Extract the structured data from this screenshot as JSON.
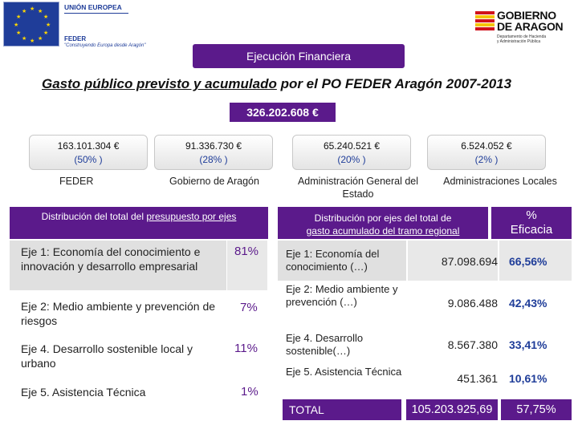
{
  "logos": {
    "eu": {
      "title": "UNIÓN EUROPEA",
      "feder": "FEDER",
      "slogan": "\"Construyendo Europa desde Aragón\"",
      "flag_color": "#1f3d99"
    },
    "aragon": {
      "name_line1": "GOBIERNO",
      "name_line2": "DE ARAGON",
      "dept_line1": "Departamento de Hacienda",
      "dept_line2": "y Administración Pública"
    }
  },
  "header": {
    "label": "Ejecución Financiera"
  },
  "title": {
    "underlined": "Gasto público previsto y acumulado",
    "rest": " por el PO FEDER Aragón 2007-2013"
  },
  "total": "326.202.608 €",
  "contributions": [
    {
      "amount": "163.101.304 €",
      "percent": "(50% )",
      "label": "FEDER"
    },
    {
      "amount": "91.336.730 €",
      "percent": "(28% )",
      "label": "Gobierno de Aragón"
    },
    {
      "amount": "65.240.521 €",
      "percent": "(20% )",
      "label": "Administración General del Estado"
    },
    {
      "amount": "6.524.052 €",
      "percent": "(2% )",
      "label": "Administraciones Locales"
    }
  ],
  "budget_by_axis": {
    "header_pre": "Distribución del total del ",
    "header_u": "presupuesto por ejes",
    "rows": [
      {
        "label": "Eje 1: Economía del conocimiento e innovación y desarrollo empresarial",
        "percent": "81%"
      },
      {
        "label": "Eje 2: Medio ambiente y prevención de riesgos",
        "percent": "7%"
      },
      {
        "label": "Eje 4. Desarrollo sostenible local y urbano",
        "percent": "11%"
      },
      {
        "label": "Eje 5. Asistencia Técnica",
        "percent": "1%"
      }
    ]
  },
  "regional_by_axis": {
    "header_pre": "Distribución por ejes del total de ",
    "header_u": "gasto acumulado del tramo regional",
    "efficacy_line1": "%",
    "efficacy_line2": "Eficacia",
    "rows": [
      {
        "label": "Eje 1: Economía del conocimiento (…)",
        "amount": "87.098.694",
        "efficacy": "66,56%"
      },
      {
        "label": "Eje 2: Medio ambiente y prevención (…)",
        "amount": "9.086.488",
        "efficacy": "42,43%"
      },
      {
        "label": "Eje 4. Desarrollo sostenible(…)",
        "amount": "8.567.380",
        "efficacy": "33,41%"
      },
      {
        "label": "Eje 5. Asistencia Técnica",
        "amount": "451.361",
        "efficacy": "10,61%"
      }
    ],
    "total": {
      "label": "TOTAL",
      "amount": "105.203.925,69",
      "efficacy": "57,75%"
    }
  },
  "colors": {
    "purple": "#5b1a8b",
    "blue": "#1f3d99"
  }
}
